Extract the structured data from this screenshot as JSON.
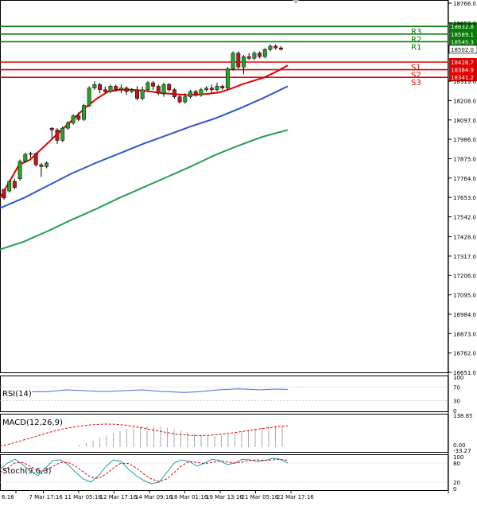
{
  "chart_data": {
    "type": "candlestick",
    "ylim": [
      16651.0,
      18766.0
    ],
    "y_ticks": [
      "18766.0",
      "18653.0",
      "18319.0",
      "18208.0",
      "18097.0",
      "17986.0",
      "17875.0",
      "17764.0",
      "17653.0",
      "17542.0",
      "17428.0",
      "17317.0",
      "17206.0",
      "17095.0",
      "16984.0",
      "16873.0",
      "16762.0",
      "16651.0"
    ],
    "x_ticks": [
      "6:16",
      "7 Mar 17:16",
      "11 Mar 05:16",
      "12 Mar 17:16",
      "14 Mar 09:16",
      "18 Mar 01:16",
      "19 Mar 13:16",
      "21 Mar 05:16",
      "22 Mar 17:16"
    ],
    "current_price": "18502.0",
    "levels": [
      {
        "name": "R3",
        "value": 18632.8,
        "label": "18632.8",
        "color": "#0a7a0a"
      },
      {
        "name": "R2",
        "value": 18589.1,
        "label": "18589.1",
        "color": "#0a7a0a"
      },
      {
        "name": "R1",
        "value": 18545.3,
        "label": "18545.3",
        "color": "#0a7a0a"
      },
      {
        "name": "S1",
        "value": 18428.7,
        "label": "18428.7",
        "color": "#e00000"
      },
      {
        "name": "S2",
        "value": 18384.9,
        "label": "18384.9",
        "color": "#e00000"
      },
      {
        "name": "S3",
        "value": 18341.2,
        "label": "18341.2",
        "color": "#e00000"
      }
    ],
    "candles": [
      [
        17700,
        17650,
        17660,
        17640
      ],
      [
        17690,
        17745,
        17750,
        17680
      ],
      [
        17745,
        17710,
        17760,
        17700
      ],
      [
        17760,
        17860,
        17870,
        17750
      ],
      [
        17860,
        17900,
        17910,
        17850
      ],
      [
        17900,
        17905,
        17915,
        17880
      ],
      [
        17905,
        17840,
        17910,
        17830
      ],
      [
        17840,
        17830,
        17850,
        17770
      ],
      [
        17830,
        17850,
        17860,
        17820
      ],
      [
        18050,
        18040,
        18055,
        17990
      ],
      [
        18040,
        17980,
        18050,
        17960
      ],
      [
        17980,
        18050,
        18060,
        17970
      ],
      [
        18050,
        18080,
        18090,
        18040
      ],
      [
        18080,
        18120,
        18130,
        18070
      ],
      [
        18120,
        18100,
        18140,
        18090
      ],
      [
        18100,
        18180,
        18190,
        18090
      ],
      [
        18180,
        18280,
        18290,
        18170
      ],
      [
        18280,
        18300,
        18320,
        18270
      ],
      [
        18300,
        18270,
        18310,
        18250
      ],
      [
        18270,
        18260,
        18290,
        18250
      ],
      [
        18260,
        18290,
        18300,
        18250
      ],
      [
        18290,
        18270,
        18300,
        18260
      ],
      [
        18270,
        18280,
        18300,
        18250
      ],
      [
        18280,
        18260,
        18290,
        18240
      ],
      [
        18260,
        18270,
        18280,
        18250
      ],
      [
        18270,
        18220,
        18290,
        18210
      ],
      [
        18220,
        18270,
        18290,
        18210
      ],
      [
        18270,
        18310,
        18320,
        18260
      ],
      [
        18310,
        18290,
        18320,
        18270
      ],
      [
        18290,
        18250,
        18300,
        18240
      ],
      [
        18250,
        18300,
        18310,
        18230
      ],
      [
        18300,
        18270,
        18310,
        18260
      ],
      [
        18270,
        18230,
        18280,
        18220
      ],
      [
        18230,
        18200,
        18240,
        18190
      ],
      [
        18200,
        18230,
        18250,
        18190
      ],
      [
        18230,
        18260,
        18270,
        18220
      ],
      [
        18260,
        18240,
        18270,
        18230
      ],
      [
        18240,
        18270,
        18280,
        18230
      ],
      [
        18270,
        18280,
        18290,
        18260
      ],
      [
        18280,
        18270,
        18300,
        18250
      ],
      [
        18270,
        18290,
        18310,
        18260
      ],
      [
        18290,
        18280,
        18300,
        18270
      ],
      [
        18280,
        18390,
        18400,
        18270
      ],
      [
        18390,
        18480,
        18490,
        18380
      ],
      [
        18480,
        18400,
        18490,
        18390
      ],
      [
        18400,
        18460,
        18470,
        18360
      ],
      [
        18460,
        18450,
        18480,
        18440
      ],
      [
        18450,
        18480,
        18490,
        18440
      ],
      [
        18480,
        18460,
        18490,
        18450
      ],
      [
        18460,
        18500,
        18510,
        18450
      ],
      [
        18500,
        18520,
        18530,
        18490
      ],
      [
        18520,
        18510,
        18530,
        18500
      ],
      [
        18510,
        18502,
        18520,
        18495
      ]
    ],
    "ma_series": [
      {
        "color": "#e00000",
        "points": [
          [
            0,
            17650
          ],
          [
            12,
            17745
          ],
          [
            24,
            17840
          ],
          [
            38,
            17870
          ],
          [
            52,
            17930
          ],
          [
            66,
            17990
          ],
          [
            80,
            18050
          ],
          [
            94,
            18110
          ],
          [
            108,
            18170
          ],
          [
            122,
            18220
          ],
          [
            136,
            18260
          ],
          [
            150,
            18270
          ],
          [
            164,
            18270
          ],
          [
            178,
            18265
          ],
          [
            192,
            18258
          ],
          [
            206,
            18250
          ],
          [
            220,
            18245
          ],
          [
            234,
            18240
          ],
          [
            248,
            18242
          ],
          [
            262,
            18247
          ],
          [
            276,
            18255
          ],
          [
            290,
            18275
          ],
          [
            304,
            18300
          ],
          [
            318,
            18320
          ],
          [
            332,
            18340
          ],
          [
            346,
            18370
          ],
          [
            362,
            18410
          ]
        ]
      },
      {
        "color": "#3355cc",
        "points": [
          [
            0,
            17592
          ],
          [
            30,
            17650
          ],
          [
            60,
            17720
          ],
          [
            90,
            17790
          ],
          [
            120,
            17850
          ],
          [
            150,
            17905
          ],
          [
            180,
            17960
          ],
          [
            210,
            18010
          ],
          [
            240,
            18060
          ],
          [
            270,
            18105
          ],
          [
            300,
            18160
          ],
          [
            330,
            18220
          ],
          [
            362,
            18290
          ]
        ]
      },
      {
        "color": "#22a050",
        "points": [
          [
            0,
            17355
          ],
          [
            30,
            17400
          ],
          [
            60,
            17460
          ],
          [
            90,
            17525
          ],
          [
            120,
            17585
          ],
          [
            150,
            17650
          ],
          [
            180,
            17710
          ],
          [
            210,
            17770
          ],
          [
            240,
            17830
          ],
          [
            270,
            17895
          ],
          [
            300,
            17950
          ],
          [
            330,
            18000
          ],
          [
            362,
            18040
          ]
        ]
      }
    ],
    "rsi": {
      "label": "RSI(14)",
      "ticks": [
        "100",
        "70",
        "30",
        "0"
      ],
      "values": [
        56,
        57,
        56,
        58,
        60,
        62,
        61,
        60,
        59,
        58,
        57,
        57,
        58,
        59,
        60,
        61,
        62,
        60,
        58,
        57,
        56,
        55,
        54,
        55,
        56,
        58,
        60,
        62,
        63,
        64,
        65,
        64,
        63,
        62,
        63,
        64,
        64,
        63
      ]
    },
    "macd": {
      "label": "MACD(12,26,9)",
      "ticks": [
        "138.85",
        "0.00",
        "-33.27"
      ],
      "histogram": [
        10,
        20,
        32,
        45,
        56,
        68,
        78,
        88,
        95,
        100,
        102,
        103,
        100,
        95,
        88,
        80,
        72,
        64,
        58,
        55,
        54,
        56,
        60,
        66,
        72,
        80,
        88,
        94,
        100,
        104,
        106
      ],
      "signal": [
        5,
        15,
        28,
        42,
        56,
        70,
        82,
        92,
        100,
        106,
        110,
        112,
        111,
        107,
        100,
        92,
        82,
        74,
        66,
        60,
        57,
        56,
        58,
        62,
        67,
        74,
        81,
        88,
        94,
        99,
        103
      ]
    },
    "stoch": {
      "label": "Stoch(9,6,3)",
      "ticks": [
        "100",
        "80",
        "20",
        "0"
      ],
      "main": [
        60,
        80,
        92,
        75,
        55,
        40,
        65,
        88,
        90,
        75,
        50,
        30,
        20,
        40,
        70,
        90,
        85,
        60,
        40,
        25,
        15,
        20,
        50,
        80,
        90,
        85,
        70,
        80,
        92,
        88,
        75,
        80,
        92,
        90,
        85,
        88,
        95,
        92,
        80
      ],
      "signal": [
        50,
        65,
        80,
        82,
        70,
        55,
        55,
        70,
        82,
        82,
        70,
        52,
        35,
        32,
        45,
        65,
        80,
        78,
        65,
        45,
        30,
        22,
        30,
        50,
        72,
        85,
        82,
        78,
        82,
        86,
        84,
        80,
        83,
        88,
        90,
        88,
        90,
        92,
        88
      ]
    }
  }
}
